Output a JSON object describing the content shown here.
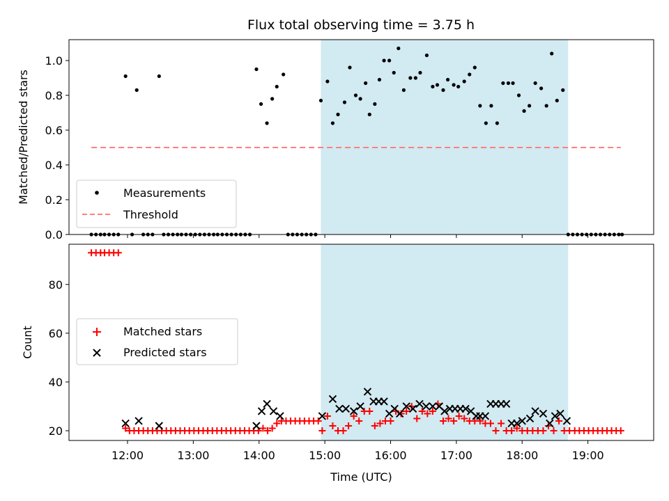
{
  "title": "Flux total observing time = 3.75 h",
  "colors": {
    "measurement": "#000000",
    "threshold": "#ff7f7f",
    "matched": "#ff0000",
    "predicted": "#000000",
    "band": "#add8e6"
  },
  "chart_data": [
    {
      "type": "scatter",
      "ylabel": "Matched/Predicted stars",
      "xlim": [
        11.11,
        20.0
      ],
      "ylim": [
        0,
        1.12
      ],
      "yticks": [
        {
          "v": 0,
          "label": "0.0"
        },
        {
          "v": 0.2,
          "label": "0.2"
        },
        {
          "v": 0.4,
          "label": "0.4"
        },
        {
          "v": 0.6,
          "label": "0.6"
        },
        {
          "v": 0.8,
          "label": "0.8"
        },
        {
          "v": 1.0,
          "label": "1.0"
        }
      ],
      "grid": false,
      "legend": {
        "position": "lower-left",
        "entries": [
          "Measurements",
          "Threshold"
        ]
      },
      "highlight_band": [
        14.94,
        18.7
      ],
      "threshold": {
        "name": "Threshold",
        "y": 0.5,
        "x": [
          11.45,
          19.5
        ]
      },
      "series": [
        {
          "name": "Measurements",
          "x": [
            11.45,
            11.52,
            11.59,
            11.65,
            11.72,
            11.79,
            11.86,
            11.97,
            12.07,
            12.14,
            12.24,
            12.31,
            12.38,
            12.48,
            12.55,
            12.62,
            12.69,
            12.76,
            12.82,
            12.89,
            12.96,
            13.03,
            13.1,
            13.17,
            13.24,
            13.31,
            13.37,
            13.44,
            13.51,
            13.58,
            13.65,
            13.72,
            13.79,
            13.86,
            13.96,
            14.03,
            14.12,
            14.2,
            14.27,
            14.37,
            14.44,
            14.51,
            14.58,
            14.65,
            14.72,
            14.79,
            14.86,
            14.94,
            15.04,
            15.12,
            15.2,
            15.3,
            15.38,
            15.47,
            15.54,
            15.62,
            15.68,
            15.76,
            15.83,
            15.9,
            15.98,
            16.05,
            16.12,
            16.2,
            16.3,
            16.38,
            16.45,
            16.55,
            16.64,
            16.71,
            16.8,
            16.87,
            16.96,
            17.03,
            17.12,
            17.2,
            17.28,
            17.36,
            17.45,
            17.53,
            17.62,
            17.71,
            17.79,
            17.86,
            17.95,
            18.03,
            18.11,
            18.2,
            18.29,
            18.37,
            18.45,
            18.53,
            18.62,
            18.7,
            18.77,
            18.84,
            18.91,
            18.98,
            19.05,
            19.12,
            19.19,
            19.26,
            19.33,
            19.4,
            19.47,
            19.52
          ],
          "y": [
            0,
            0,
            0,
            0,
            0,
            0,
            0,
            0.91,
            0,
            0.83,
            0,
            0,
            0,
            0.91,
            0,
            0,
            0,
            0,
            0,
            0,
            0,
            0,
            0,
            0,
            0,
            0,
            0,
            0,
            0,
            0,
            0,
            0,
            0,
            0,
            0.95,
            0.75,
            0.64,
            0.78,
            0.85,
            0.92,
            0,
            0,
            0,
            0,
            0,
            0,
            0,
            0.77,
            0.88,
            0.64,
            0.69,
            0.76,
            0.96,
            0.8,
            0.78,
            0.87,
            0.69,
            0.75,
            0.89,
            1.0,
            1.0,
            0.93,
            1.07,
            0.83,
            0.9,
            0.9,
            0.93,
            1.03,
            0.85,
            0.86,
            0.83,
            0.89,
            0.86,
            0.85,
            0.88,
            0.92,
            0.96,
            0.74,
            0.64,
            0.74,
            0.64,
            0.87,
            0.87,
            0.87,
            0.8,
            0.71,
            0.74,
            0.87,
            0.84,
            0.74,
            1.04,
            0.77,
            0.83,
            0,
            0,
            0,
            0,
            0,
            0,
            0,
            0,
            0,
            0,
            0,
            0,
            0
          ]
        }
      ]
    },
    {
      "type": "scatter",
      "xlabel": "Time (UTC)",
      "ylabel": "Count",
      "xlim": [
        11.11,
        20.0
      ],
      "ylim": [
        16.0,
        96.5
      ],
      "xticks": [
        {
          "v": 12,
          "label": "12:00"
        },
        {
          "v": 13,
          "label": "13:00"
        },
        {
          "v": 14,
          "label": "14:00"
        },
        {
          "v": 15,
          "label": "15:00"
        },
        {
          "v": 16,
          "label": "16:00"
        },
        {
          "v": 17,
          "label": "17:00"
        },
        {
          "v": 18,
          "label": "18:00"
        },
        {
          "v": 19,
          "label": "19:00"
        }
      ],
      "yticks": [
        {
          "v": 20,
          "label": "20"
        },
        {
          "v": 40,
          "label": "40"
        },
        {
          "v": 60,
          "label": "60"
        },
        {
          "v": 80,
          "label": "80"
        }
      ],
      "grid": false,
      "legend": {
        "position": "center-left",
        "entries": [
          "Matched stars",
          "Predicted stars"
        ]
      },
      "highlight_band": [
        14.94,
        18.7
      ],
      "series": [
        {
          "name": "Matched stars",
          "marker": "+",
          "x": [
            11.45,
            11.52,
            11.59,
            11.65,
            11.72,
            11.79,
            11.86,
            11.97,
            12.03,
            12.1,
            12.17,
            12.24,
            12.31,
            12.38,
            12.45,
            12.52,
            12.59,
            12.66,
            12.73,
            12.8,
            12.87,
            12.94,
            13.01,
            13.08,
            13.15,
            13.22,
            13.29,
            13.36,
            13.43,
            13.5,
            13.57,
            13.64,
            13.71,
            13.78,
            13.85,
            13.92,
            13.99,
            14.06,
            14.13,
            14.2,
            14.27,
            14.34,
            14.41,
            14.48,
            14.55,
            14.62,
            14.69,
            14.76,
            14.83,
            14.9,
            14.96,
            15.04,
            15.12,
            15.2,
            15.28,
            15.36,
            15.44,
            15.52,
            15.6,
            15.68,
            15.76,
            15.84,
            15.92,
            16.0,
            16.08,
            16.16,
            16.24,
            16.32,
            16.4,
            16.48,
            16.56,
            16.64,
            16.72,
            16.8,
            16.88,
            16.96,
            17.04,
            17.12,
            17.2,
            17.28,
            17.36,
            17.44,
            17.52,
            17.6,
            17.68,
            17.76,
            17.84,
            17.92,
            18.0,
            18.08,
            18.16,
            18.24,
            18.32,
            18.4,
            18.48,
            18.56,
            18.64,
            18.72,
            18.8,
            18.87,
            18.94,
            19.01,
            19.08,
            19.15,
            19.22,
            19.29,
            19.36,
            19.43,
            19.5
          ],
          "y": [
            93,
            93,
            93,
            93,
            93,
            93,
            93,
            21,
            20,
            20,
            20,
            20,
            20,
            20,
            20,
            20,
            20,
            20,
            20,
            20,
            20,
            20,
            20,
            20,
            20,
            20,
            20,
            20,
            20,
            20,
            20,
            20,
            20,
            20,
            20,
            20,
            20,
            21,
            20,
            21,
            23,
            24,
            24,
            24,
            24,
            24,
            24,
            24,
            24,
            24,
            20,
            26,
            22,
            20,
            20,
            22,
            26,
            24,
            28,
            28,
            22,
            23,
            24,
            24,
            28,
            27,
            28,
            30,
            25,
            28,
            27,
            28,
            31,
            24,
            25,
            24,
            26,
            25,
            24,
            24,
            24,
            23,
            23,
            20,
            23,
            20,
            20,
            21,
            20,
            20,
            20,
            20,
            20,
            22,
            20,
            24,
            20,
            20,
            20,
            20,
            20,
            20,
            20,
            20,
            20,
            20,
            20,
            20,
            20
          ]
        },
        {
          "name": "Predicted stars",
          "marker": "x",
          "x": [
            11.97,
            12.17,
            12.48,
            13.96,
            14.04,
            14.12,
            14.22,
            14.32,
            14.96,
            15.12,
            15.22,
            15.32,
            15.44,
            15.54,
            15.65,
            15.74,
            15.82,
            15.9,
            15.98,
            16.06,
            16.14,
            16.24,
            16.34,
            16.44,
            16.54,
            16.64,
            16.74,
            16.82,
            16.9,
            16.98,
            17.06,
            17.14,
            17.22,
            17.3,
            17.36,
            17.44,
            17.52,
            17.6,
            17.68,
            17.76,
            17.84,
            17.92,
            18.0,
            18.12,
            18.2,
            18.32,
            18.42,
            18.5,
            18.58,
            18.68
          ],
          "y": [
            23,
            24,
            22,
            22,
            28,
            31,
            28,
            26,
            26,
            33,
            29,
            29,
            28,
            30,
            36,
            32,
            32,
            32,
            27,
            29,
            27,
            30,
            29,
            31,
            30,
            30,
            30,
            28,
            29,
            29,
            29,
            29,
            28,
            26,
            26,
            26,
            31,
            31,
            31,
            31,
            23,
            23,
            24,
            25,
            28,
            27,
            23,
            26,
            27,
            24
          ]
        }
      ]
    }
  ]
}
